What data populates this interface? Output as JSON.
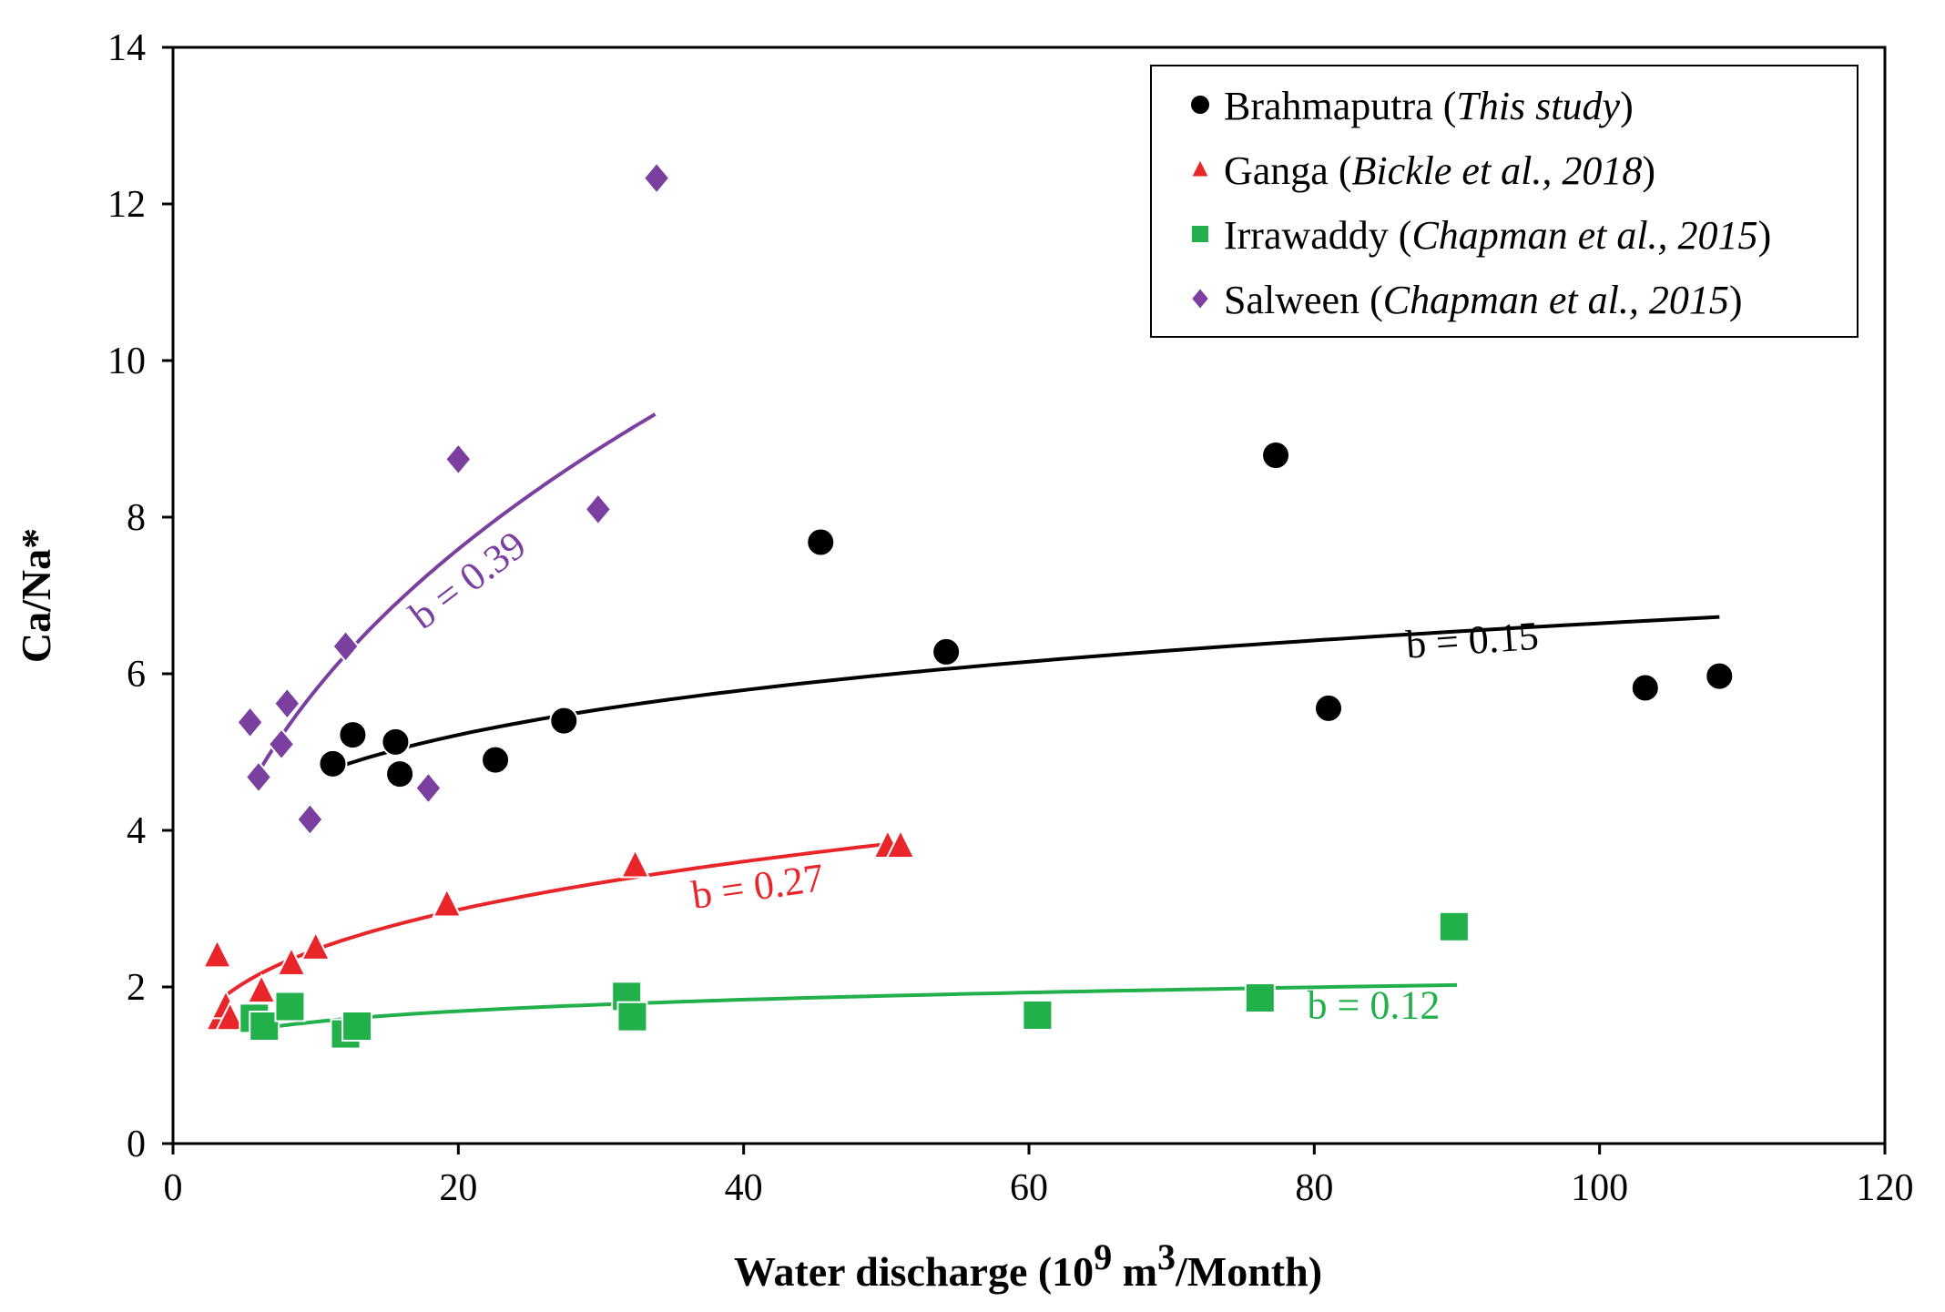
{
  "chart_data": {
    "type": "scatter",
    "xlabel": "Water discharge (10",
    "xlabel_exp1": "9",
    "xlabel_mid": " m",
    "xlabel_exp2": "3",
    "xlabel_end": "/Month)",
    "ylabel": "Ca/Na*",
    "xlim": [
      0,
      120
    ],
    "ylim": [
      0,
      14
    ],
    "xticks": [
      0,
      20,
      40,
      60,
      80,
      100,
      120
    ],
    "yticks": [
      0,
      2,
      4,
      6,
      8,
      10,
      12,
      14
    ],
    "grid": false,
    "legend_position": "top-right",
    "series": [
      {
        "name": "Brahmaputra",
        "citation": "This study",
        "marker": "circle",
        "color": "#000000",
        "points": [
          [
            11.2,
            4.85
          ],
          [
            12.6,
            5.22
          ],
          [
            15.6,
            5.13
          ],
          [
            15.9,
            4.72
          ],
          [
            22.6,
            4.9
          ],
          [
            27.4,
            5.4
          ],
          [
            45.4,
            7.68
          ],
          [
            54.2,
            6.28
          ],
          [
            77.3,
            8.79
          ],
          [
            81.0,
            5.56
          ],
          [
            103.2,
            5.82
          ],
          [
            108.4,
            5.97
          ]
        ],
        "fit": {
          "a": 3.33,
          "b": 0.15,
          "x_range": [
            11.2,
            108.4
          ],
          "label": "b = 0.15",
          "label_at": [
            86.5,
            6.2
          ],
          "label_rotate": -4
        }
      },
      {
        "name": "Ganga",
        "citation": "Bickle et al., 2018",
        "marker": "triangle",
        "color": "#e8262a",
        "points": [
          [
            3.1,
            2.4
          ],
          [
            3.3,
            1.6
          ],
          [
            3.7,
            1.75
          ],
          [
            4.0,
            1.6
          ],
          [
            6.2,
            1.95
          ],
          [
            8.3,
            2.3
          ],
          [
            10.0,
            2.5
          ],
          [
            19.2,
            3.05
          ],
          [
            32.4,
            3.55
          ],
          [
            50.1,
            3.8
          ],
          [
            51.0,
            3.8
          ]
        ],
        "fit": {
          "a": 1.33,
          "b": 0.27,
          "x_range": [
            3.6,
            50.5
          ],
          "label": "b = 0.27",
          "label_at": [
            36.5,
            3.0
          ],
          "label_rotate": -8
        }
      },
      {
        "name": "Irrawaddy",
        "citation": "Chapman et al., 2015",
        "marker": "square",
        "color": "#22b04b",
        "points": [
          [
            5.7,
            1.6
          ],
          [
            6.4,
            1.5
          ],
          [
            8.2,
            1.75
          ],
          [
            12.1,
            1.4
          ],
          [
            12.9,
            1.5
          ],
          [
            31.8,
            1.88
          ],
          [
            32.2,
            1.62
          ],
          [
            60.6,
            1.64
          ],
          [
            76.2,
            1.86
          ],
          [
            89.8,
            2.77
          ]
        ],
        "fit": {
          "a": 1.18,
          "b": 0.12,
          "x_range": [
            5.5,
            90
          ],
          "label": "b = 0.12",
          "label_at": [
            79.5,
            1.6
          ],
          "label_rotate": 0
        }
      },
      {
        "name": "Salween",
        "citation": "Chapman et al., 2015",
        "marker": "diamond",
        "color": "#7b3fa0",
        "points": [
          [
            5.4,
            5.38
          ],
          [
            6.0,
            4.68
          ],
          [
            7.6,
            5.1
          ],
          [
            8.0,
            5.62
          ],
          [
            9.6,
            4.14
          ],
          [
            12.1,
            6.35
          ],
          [
            17.9,
            4.54
          ],
          [
            20.0,
            8.74
          ],
          [
            29.8,
            8.1
          ],
          [
            33.9,
            12.33
          ]
        ],
        "fit": {
          "a": 2.36,
          "b": 0.39,
          "x_range": [
            5.5,
            33.8
          ],
          "label": "b = 0.39",
          "label_at": [
            17.5,
            6.55
          ],
          "label_rotate": -37
        }
      }
    ]
  }
}
